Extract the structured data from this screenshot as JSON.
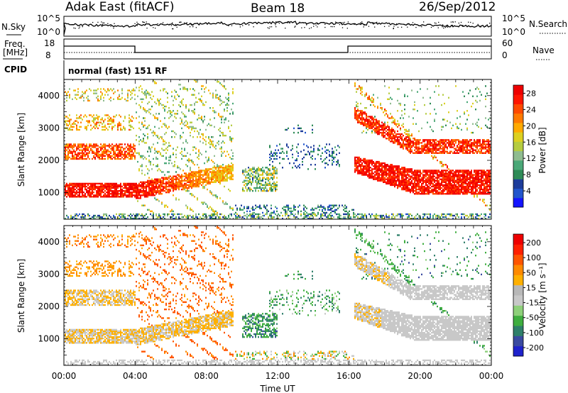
{
  "header": {
    "station": "Adak East (fitACF)",
    "beam": "Beam 18",
    "date": "26/Sep/2012"
  },
  "noise_panel": {
    "left_label": "N.Sky",
    "right_label": "N.Search",
    "left_ticks": [
      "10^5",
      "10^0"
    ],
    "right_ticks": [
      "10^5",
      "10^0"
    ]
  },
  "freq_panel": {
    "left_label_1": "Freq.",
    "left_label_2": "[MHz]",
    "right_label": "Nave",
    "left_ticks": [
      "18",
      "8"
    ],
    "right_ticks": [
      "60",
      "0"
    ]
  },
  "cpid_panel": {
    "label": "CPID",
    "mode_text": "normal (fast) 151 RF"
  },
  "chart_data": [
    {
      "type": "heatmap",
      "name": "Power",
      "ylabel": "Slant Range [km]",
      "xlabel": "Time UT",
      "x_ticks": [
        "00:00",
        "04:00",
        "08:00",
        "12:00",
        "16:00",
        "20:00",
        "00:00"
      ],
      "x_range_hours": [
        0,
        24
      ],
      "ylim": [
        180,
        4500
      ],
      "y_ticks": [
        1000,
        2000,
        3000,
        4000
      ],
      "colorbar": {
        "label": "Power [dB]",
        "tick_labels": [
          "28",
          "24",
          "20",
          "16",
          "12",
          "8",
          "4"
        ],
        "tick_values": [
          28,
          24,
          20,
          16,
          12,
          8,
          4
        ],
        "range": [
          0,
          30
        ],
        "colors": [
          "#1414ff",
          "#2255cc",
          "#1d3c9a",
          "#2e8b57",
          "#4aa878",
          "#8fbc8f",
          "#b5cc40",
          "#ddd020",
          "#ffaa00",
          "#ff7a00",
          "#ff4a00",
          "#ff1500",
          "#ee0000"
        ]
      }
    },
    {
      "type": "heatmap",
      "name": "Velocity",
      "ylabel": "Slant Range [km]",
      "xlabel": "Time UT",
      "x_ticks": [
        "00:00",
        "04:00",
        "08:00",
        "12:00",
        "16:00",
        "20:00",
        "00:00"
      ],
      "x_range_hours": [
        0,
        24
      ],
      "ylim": [
        180,
        4500
      ],
      "y_ticks": [
        1000,
        2000,
        3000,
        4000
      ],
      "colorbar": {
        "label": "Velocity [m s⁻¹]",
        "tick_labels": [
          "200",
          "100",
          "50",
          "15",
          "-15",
          "-50",
          "-100",
          "-200"
        ],
        "tick_values": [
          200,
          100,
          50,
          15,
          -15,
          -50,
          -100,
          -200
        ],
        "colors": [
          "#1e22cc",
          "#3a4aa0",
          "#2f7f6a",
          "#3fae3f",
          "#8ed07a",
          "#c8c8c8",
          "#b8b8b8",
          "#ffb000",
          "#ff8a00",
          "#ff5500",
          "#ff2000",
          "#ee0000"
        ]
      }
    }
  ],
  "time_axis": {
    "label": "Time UT",
    "ticks": [
      "00:00",
      "04:00",
      "08:00",
      "12:00",
      "16:00",
      "20:00",
      "00:00"
    ]
  }
}
